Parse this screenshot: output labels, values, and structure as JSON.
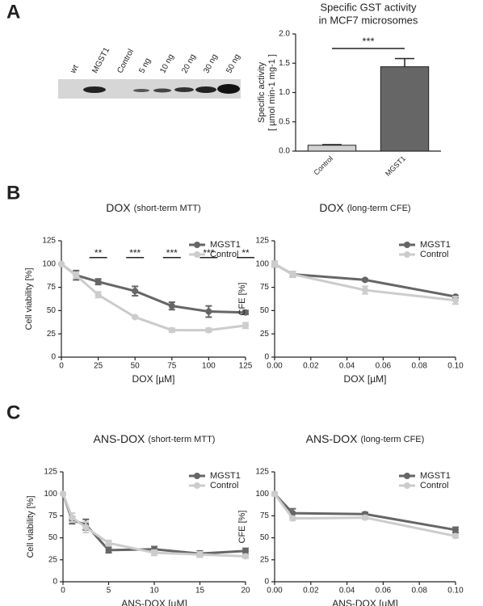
{
  "panels": [
    "A",
    "B",
    "C"
  ],
  "blot": {
    "lanes": [
      "wt",
      "MGST1",
      "Control",
      "5 ng",
      "10 ng",
      "20 ng",
      "30 ng",
      "50 ng"
    ]
  },
  "chart_data": [
    {
      "type": "bar",
      "title": [
        "Specific GST activity",
        "in MCF7 microsomes"
      ],
      "ylabel": [
        "Specific activity",
        "[ µmol min-1 mg-1 ]"
      ],
      "categories": [
        "Control",
        "MGST1"
      ],
      "values": [
        0.1,
        1.44
      ],
      "errors": [
        0.01,
        0.14
      ],
      "colors": [
        "#d2d2d2",
        "#666666"
      ],
      "ylim": [
        0,
        2.0
      ],
      "yticks": [
        {
          "value": 0,
          "label": "0.0"
        },
        {
          "value": 0.5,
          "label": "0.5"
        },
        {
          "value": 1,
          "label": "1.0"
        },
        {
          "value": 1.5,
          "label": "1.5"
        },
        {
          "value": 2,
          "label": "2.0"
        }
      ],
      "annotations": [
        {
          "text": "***"
        }
      ]
    },
    {
      "type": "line",
      "title": "DOX",
      "subtitle": "(short-term MTT)",
      "xlabel": "DOX [µM]",
      "ylabel": "Cell viability [%]",
      "x": [
        0,
        10,
        25,
        50,
        75,
        100,
        125
      ],
      "series": [
        {
          "name": "MGST1",
          "color": "#666666",
          "values": [
            100,
            88,
            81,
            71,
            55,
            49,
            48
          ],
          "errors": [
            0,
            5,
            3,
            5,
            4,
            6,
            2
          ]
        },
        {
          "name": "Control",
          "color": "#cccccc",
          "values": [
            100,
            88,
            67,
            43,
            29,
            29,
            34
          ],
          "errors": [
            0,
            3,
            3,
            1,
            2,
            2,
            3
          ]
        }
      ],
      "xlim": [
        0,
        125
      ],
      "xticks": [
        0,
        25,
        50,
        75,
        100,
        125
      ],
      "ylim": [
        0,
        125
      ],
      "yticks": [
        0,
        25,
        50,
        75,
        100,
        125
      ],
      "legend": "upper right",
      "annotations": [
        {
          "text": "**",
          "x": 25
        },
        {
          "text": "***",
          "x": 50
        },
        {
          "text": "***",
          "x": 75
        },
        {
          "text": "***",
          "x": 100
        },
        {
          "text": "**",
          "x": 125
        }
      ]
    },
    {
      "type": "line",
      "title": "DOX",
      "subtitle": "(long-term CFE)",
      "xlabel": "DOX [µM]",
      "ylabel": "CFE [%]",
      "x": [
        0,
        0.01,
        0.05,
        0.1
      ],
      "series": [
        {
          "name": "MGST1",
          "color": "#666666",
          "values": [
            100,
            89,
            83,
            65
          ],
          "errors": [
            3,
            3,
            1,
            1
          ]
        },
        {
          "name": "Control",
          "color": "#cccccc",
          "values": [
            100,
            89,
            72,
            61
          ],
          "errors": [
            3,
            3,
            4,
            4
          ]
        }
      ],
      "xlim": [
        0,
        0.1
      ],
      "xticks": [
        {
          "value": 0,
          "label": "0.00"
        },
        {
          "value": 0.02,
          "label": "0.02"
        },
        {
          "value": 0.04,
          "label": "0.04"
        },
        {
          "value": 0.06,
          "label": "0.06"
        },
        {
          "value": 0.08,
          "label": "0.08"
        },
        {
          "value": 0.1,
          "label": "0.10"
        }
      ],
      "ylim": [
        0,
        125
      ],
      "yticks": [
        0,
        25,
        50,
        75,
        100,
        125
      ],
      "legend": "upper right"
    },
    {
      "type": "line",
      "title": "ANS-DOX",
      "subtitle": "(short-term MTT)",
      "xlabel": "ANS-DOX [µM]",
      "ylabel": "Cell viability [%]",
      "x": [
        0,
        1,
        2.5,
        5,
        10,
        15,
        20
      ],
      "series": [
        {
          "name": "MGST1",
          "color": "#666666",
          "values": [
            100,
            70,
            65,
            36,
            37,
            32,
            35
          ],
          "errors": [
            0,
            4,
            6,
            3,
            3,
            3,
            3
          ]
        },
        {
          "name": "Control",
          "color": "#cccccc",
          "values": [
            100,
            73,
            62,
            44,
            33,
            31,
            29
          ],
          "errors": [
            0,
            5,
            6,
            3,
            3,
            3,
            2
          ]
        }
      ],
      "xlim": [
        0,
        20
      ],
      "xticks": [
        0,
        5,
        10,
        15,
        20
      ],
      "ylim": [
        0,
        125
      ],
      "yticks": [
        0,
        25,
        50,
        75,
        100,
        125
      ],
      "legend": "upper right"
    },
    {
      "type": "line",
      "title": "ANS-DOX",
      "subtitle": "(long-term CFE)",
      "xlabel": "ANS-DOX [µM]",
      "ylabel": "CFE [%]",
      "x": [
        0,
        0.01,
        0.05,
        0.1
      ],
      "series": [
        {
          "name": "MGST1",
          "color": "#666666",
          "values": [
            100,
            78,
            77,
            59
          ],
          "errors": [
            2,
            5,
            2,
            3
          ]
        },
        {
          "name": "Control",
          "color": "#cccccc",
          "values": [
            100,
            72,
            73,
            52
          ],
          "errors": [
            2,
            2,
            2,
            2
          ]
        }
      ],
      "xlim": [
        0,
        0.1
      ],
      "xticks": [
        {
          "value": 0,
          "label": "0.00"
        },
        {
          "value": 0.02,
          "label": "0.02"
        },
        {
          "value": 0.04,
          "label": "0.04"
        },
        {
          "value": 0.06,
          "label": "0.06"
        },
        {
          "value": 0.08,
          "label": "0.08"
        },
        {
          "value": 0.1,
          "label": "0.10"
        }
      ],
      "ylim": [
        0,
        125
      ],
      "yticks": [
        0,
        25,
        50,
        75,
        100,
        125
      ],
      "legend": "upper right"
    }
  ]
}
